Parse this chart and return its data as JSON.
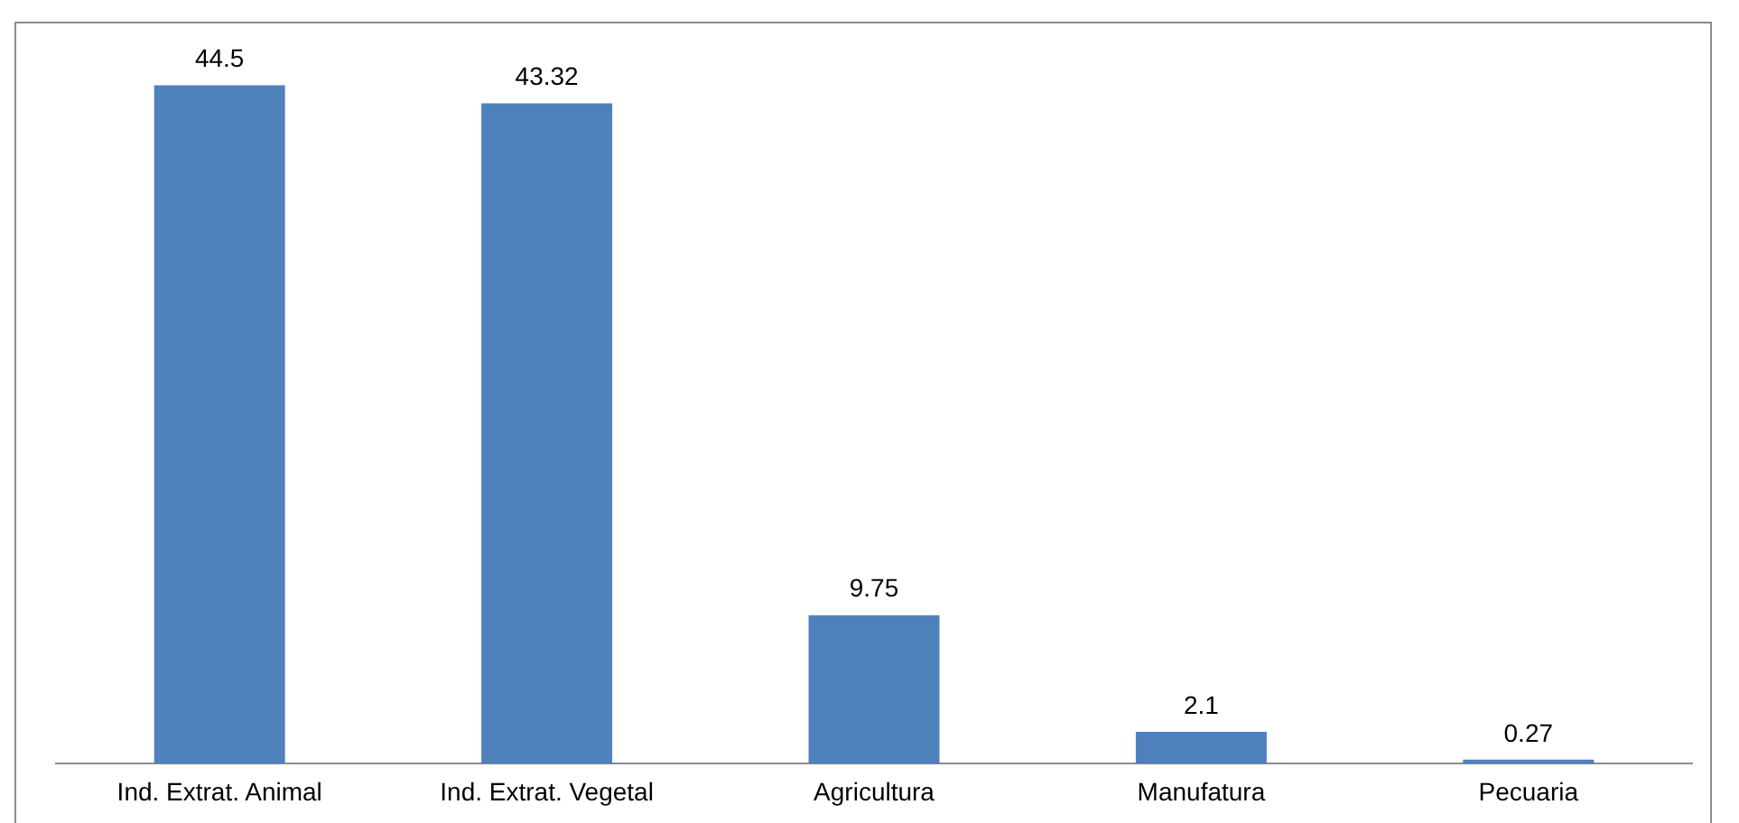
{
  "chart_data": {
    "type": "bar",
    "categories": [
      "Ind. Extrat. Animal",
      "Ind. Extrat. Vegetal",
      "Agricultura",
      "Manufatura",
      "Pecuaria"
    ],
    "values": [
      44.5,
      43.32,
      9.75,
      2.1,
      0.27
    ],
    "color": "#4f81bd",
    "data_labels": true,
    "grid": false,
    "legend": false,
    "tick_labels": "x"
  }
}
